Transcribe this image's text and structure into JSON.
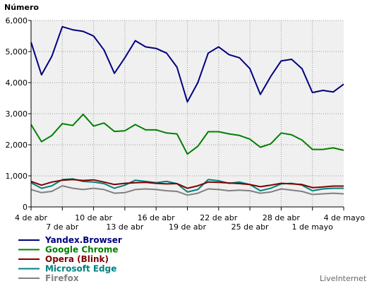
{
  "chart_data": {
    "type": "line",
    "ylabel": "Número",
    "ylim": [
      0,
      6000
    ],
    "y_ticks": [
      "0",
      "1,000",
      "2,000",
      "3,000",
      "4,000",
      "5,000",
      "6,000"
    ],
    "y_tick_values": [
      0,
      1000,
      2000,
      3000,
      4000,
      5000,
      6000
    ],
    "x": [
      "4 abr",
      "5 abr",
      "6 abr",
      "7 abr",
      "8 abr",
      "9 abr",
      "10 abr",
      "11 abr",
      "12 abr",
      "13 abr",
      "14 abr",
      "15 abr",
      "16 abr",
      "17 abr",
      "18 abr",
      "19 abr",
      "20 abr",
      "21 abr",
      "22 abr",
      "23 abr",
      "24 abr",
      "25 abr",
      "26 abr",
      "27 abr",
      "28 abr",
      "29 abr",
      "30 abr",
      "1 mayo",
      "2 mayo",
      "3 mayo",
      "4 mayo"
    ],
    "x_ticks": [
      {
        "label": "4 de abr",
        "index": 0,
        "row": 0
      },
      {
        "label": "7 de abr",
        "index": 3,
        "row": 1
      },
      {
        "label": "10 de abr",
        "index": 6,
        "row": 0
      },
      {
        "label": "13 de abr",
        "index": 9,
        "row": 1
      },
      {
        "label": "16 de abr",
        "index": 12,
        "row": 0
      },
      {
        "label": "19 de abr",
        "index": 15,
        "row": 1
      },
      {
        "label": "22 de abr",
        "index": 18,
        "row": 0
      },
      {
        "label": "25 de abr",
        "index": 21,
        "row": 1
      },
      {
        "label": "28 de abr",
        "index": 24,
        "row": 0
      },
      {
        "label": "1 de mayo",
        "index": 27,
        "row": 1
      },
      {
        "label": "4 de mayo",
        "index": 30,
        "row": 0
      }
    ],
    "grid": true,
    "legend_position": "bottom-left",
    "series": [
      {
        "name": "Yandex.Browser",
        "color": "#000080",
        "values": [
          5300,
          4250,
          4850,
          5800,
          5700,
          5650,
          5500,
          5050,
          4300,
          4800,
          5350,
          5150,
          5100,
          4950,
          4500,
          3380,
          4000,
          4950,
          5150,
          4900,
          4800,
          4450,
          3620,
          4200,
          4700,
          4750,
          4450,
          3680,
          3750,
          3700,
          3950
        ]
      },
      {
        "name": "Google Chrome",
        "color": "#008000",
        "values": [
          2650,
          2100,
          2300,
          2680,
          2620,
          2980,
          2600,
          2700,
          2430,
          2450,
          2650,
          2480,
          2480,
          2380,
          2350,
          1700,
          1950,
          2420,
          2420,
          2350,
          2300,
          2180,
          1920,
          2030,
          2380,
          2320,
          2150,
          1850,
          1850,
          1900,
          1820
        ]
      },
      {
        "name": "Opera (Blink)",
        "color": "#800000",
        "values": [
          820,
          700,
          800,
          860,
          880,
          850,
          870,
          800,
          720,
          760,
          780,
          790,
          760,
          740,
          750,
          600,
          680,
          800,
          790,
          770,
          750,
          720,
          650,
          700,
          760,
          740,
          720,
          620,
          640,
          670,
          670
        ]
      },
      {
        "name": "Microsoft Edge",
        "color": "#008080",
        "values": [
          780,
          600,
          680,
          880,
          900,
          820,
          800,
          750,
          600,
          700,
          860,
          820,
          780,
          820,
          750,
          480,
          560,
          880,
          840,
          760,
          800,
          720,
          520,
          600,
          740,
          760,
          700,
          520,
          580,
          600,
          600
        ]
      },
      {
        "name": "Firefox",
        "color": "#808080",
        "values": [
          560,
          460,
          500,
          680,
          600,
          560,
          600,
          560,
          440,
          460,
          560,
          580,
          560,
          520,
          500,
          380,
          440,
          580,
          560,
          520,
          540,
          520,
          440,
          480,
          580,
          540,
          500,
          400,
          420,
          440,
          420
        ]
      }
    ]
  },
  "credit": "LiveInternet"
}
